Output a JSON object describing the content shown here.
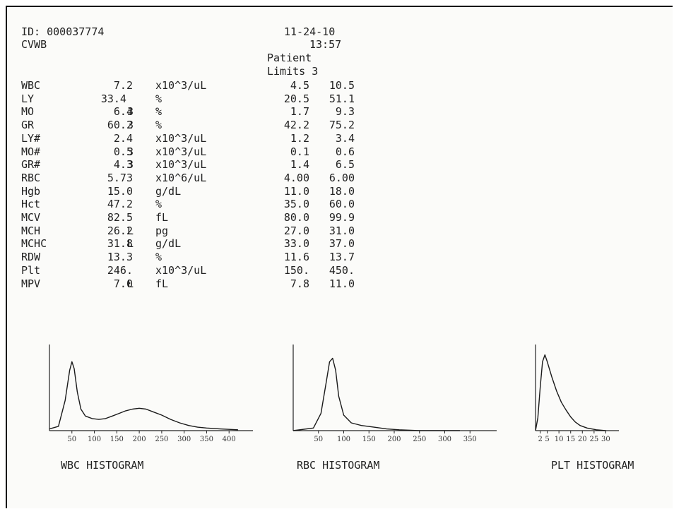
{
  "header": {
    "id_line": "ID: 000037774",
    "code": "CVWB",
    "date": "11-24-10",
    "time": "13:57",
    "patient_label": "Patient",
    "limits_label": "Limits 3"
  },
  "results": [
    {
      "name": "WBC",
      "value": "7.2",
      "flag": "",
      "unit": "x10^3/uL",
      "low": "4.5",
      "high": "10.5"
    },
    {
      "name": "LY",
      "value": "33.4 ",
      "flag": "",
      "unit": "%",
      "low": "20.5",
      "high": "51.1"
    },
    {
      "name": "MO",
      "value": "6.4",
      "flag": "3",
      "unit": "%",
      "low": "1.7",
      "high": "9.3"
    },
    {
      "name": "GR",
      "value": "60.2",
      "flag": "3",
      "unit": "%",
      "low": "42.2",
      "high": "75.2"
    },
    {
      "name": "LY#",
      "value": "2.4",
      "flag": "",
      "unit": "x10^3/uL",
      "low": "1.2",
      "high": "3.4"
    },
    {
      "name": "MO#",
      "value": "0.5",
      "flag": "3",
      "unit": "x10^3/uL",
      "low": "0.1",
      "high": "0.6"
    },
    {
      "name": "GR#",
      "value": "4.3",
      "flag": "3",
      "unit": "x10^3/uL",
      "low": "1.4",
      "high": "6.5"
    },
    {
      "name": "RBC",
      "value": "5.73",
      "flag": "",
      "unit": "x10^6/uL",
      "low": "4.00",
      "high": "6.00"
    },
    {
      "name": "Hgb",
      "value": "15.0",
      "flag": "",
      "unit": "g/dL",
      "low": "11.0",
      "high": "18.0"
    },
    {
      "name": "Hct",
      "value": "47.2",
      "flag": "",
      "unit": "%",
      "low": "35.0",
      "high": "60.0"
    },
    {
      "name": "MCV",
      "value": "82.5",
      "flag": "",
      "unit": "fL",
      "low": "80.0",
      "high": "99.9"
    },
    {
      "name": "MCH",
      "value": "26.2",
      "flag": "L",
      "unit": "pg",
      "low": "27.0",
      "high": "31.0"
    },
    {
      "name": "MCHC",
      "value": "31.8",
      "flag": "L",
      "unit": "g/dL",
      "low": "33.0",
      "high": "37.0"
    },
    {
      "name": "RDW",
      "value": "13.3",
      "flag": "",
      "unit": "%",
      "low": "11.6",
      "high": "13.7"
    },
    {
      "name": "Plt",
      "value": "246.",
      "flag": "",
      "unit": "x10^3/uL",
      "low": "150.",
      "high": "450."
    },
    {
      "name": "MPV",
      "value": "7.0",
      "flag": "L",
      "unit": "fL",
      "low": "7.8",
      "high": "11.0"
    }
  ],
  "histograms": [
    {
      "title": "WBC HISTOGRAM",
      "ticks": [
        "50",
        "100",
        "150",
        "200",
        "250",
        "300",
        "350",
        "400"
      ],
      "xmax": 450,
      "curve": [
        [
          0,
          0.02
        ],
        [
          20,
          0.05
        ],
        [
          35,
          0.35
        ],
        [
          45,
          0.7
        ],
        [
          50,
          0.8
        ],
        [
          55,
          0.72
        ],
        [
          62,
          0.45
        ],
        [
          70,
          0.25
        ],
        [
          80,
          0.17
        ],
        [
          95,
          0.14
        ],
        [
          110,
          0.13
        ],
        [
          125,
          0.14
        ],
        [
          140,
          0.17
        ],
        [
          155,
          0.2
        ],
        [
          170,
          0.23
        ],
        [
          185,
          0.25
        ],
        [
          200,
          0.26
        ],
        [
          215,
          0.25
        ],
        [
          230,
          0.22
        ],
        [
          250,
          0.18
        ],
        [
          270,
          0.13
        ],
        [
          290,
          0.09
        ],
        [
          310,
          0.06
        ],
        [
          330,
          0.04
        ],
        [
          350,
          0.03
        ],
        [
          380,
          0.02
        ],
        [
          420,
          0.01
        ]
      ]
    },
    {
      "title": "RBC HISTOGRAM",
      "ticks": [
        "50",
        "100",
        "150",
        "200",
        "250",
        "300",
        "350"
      ],
      "xmax": 400,
      "curve": [
        [
          0,
          0.0
        ],
        [
          40,
          0.03
        ],
        [
          55,
          0.2
        ],
        [
          65,
          0.55
        ],
        [
          72,
          0.8
        ],
        [
          78,
          0.84
        ],
        [
          84,
          0.7
        ],
        [
          90,
          0.4
        ],
        [
          100,
          0.18
        ],
        [
          115,
          0.09
        ],
        [
          135,
          0.06
        ],
        [
          160,
          0.04
        ],
        [
          185,
          0.02
        ],
        [
          210,
          0.01
        ],
        [
          250,
          0.0
        ],
        [
          330,
          0.0
        ]
      ]
    },
    {
      "title": "PLT HISTOGRAM",
      "ticks": [
        "2",
        "5",
        "10",
        "15",
        "20",
        "25",
        "30"
      ],
      "xmax": 35,
      "curve": [
        [
          0,
          0.0
        ],
        [
          1,
          0.15
        ],
        [
          2,
          0.5
        ],
        [
          3,
          0.8
        ],
        [
          4,
          0.88
        ],
        [
          5,
          0.8
        ],
        [
          7,
          0.62
        ],
        [
          9,
          0.46
        ],
        [
          11,
          0.33
        ],
        [
          13,
          0.24
        ],
        [
          15,
          0.16
        ],
        [
          17,
          0.1
        ],
        [
          19,
          0.06
        ],
        [
          22,
          0.03
        ],
        [
          26,
          0.01
        ],
        [
          30,
          0.0
        ]
      ]
    }
  ]
}
